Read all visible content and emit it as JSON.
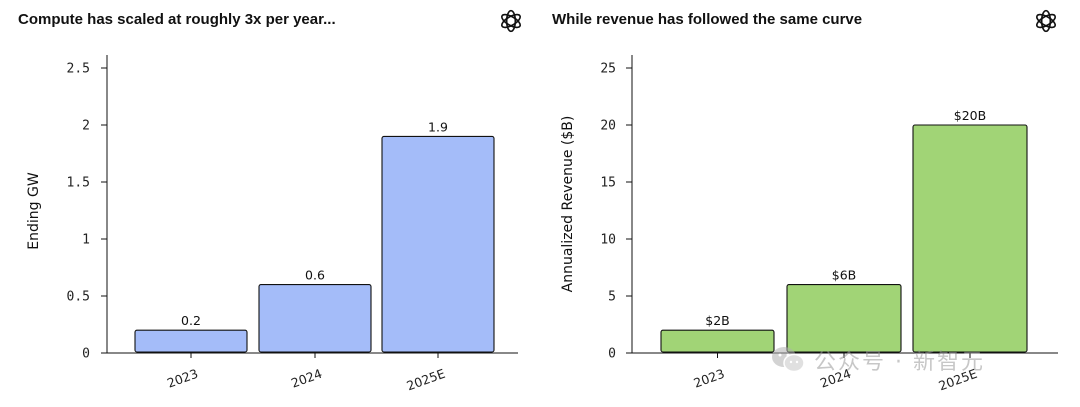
{
  "left": {
    "title": "Compute has scaled at roughly 3x per year...",
    "logo_icon": "openai-logo-icon"
  },
  "right": {
    "title": "While revenue has followed the same curve",
    "logo_icon": "openai-logo-icon"
  },
  "watermark": {
    "icon": "wechat-icon",
    "text": "公众号 · 新智元"
  },
  "chart_data": [
    {
      "type": "bar",
      "title": "Compute has scaled at roughly 3x per year...",
      "categories": [
        "2023",
        "2024",
        "2025E"
      ],
      "values": [
        0.2,
        0.6,
        1.9
      ],
      "data_labels": [
        "0.2",
        "0.6",
        "1.9"
      ],
      "xlabel": "",
      "ylabel": "Ending GW",
      "ylim": [
        0,
        2.5
      ],
      "yticks": [
        0,
        0.5,
        1,
        1.5,
        2,
        2.5
      ],
      "ytick_labels": [
        "0",
        "0.5",
        "1",
        "1.5",
        "2",
        "2.5"
      ],
      "bar_color": "#a4bcf9",
      "grid": false,
      "legend": "none"
    },
    {
      "type": "bar",
      "title": "While revenue has followed the same curve",
      "categories": [
        "2023",
        "2024",
        "2025E"
      ],
      "values": [
        2,
        6,
        20
      ],
      "data_labels": [
        "$2B",
        "$6B",
        "$20B"
      ],
      "xlabel": "",
      "ylabel": "Annualized Revenue ($B)",
      "ylim": [
        0,
        25
      ],
      "yticks": [
        0,
        5,
        10,
        15,
        20,
        25
      ],
      "ytick_labels": [
        "0",
        "5",
        "10",
        "15",
        "20",
        "25"
      ],
      "bar_color": "#a1d476",
      "grid": false,
      "legend": "none"
    }
  ]
}
